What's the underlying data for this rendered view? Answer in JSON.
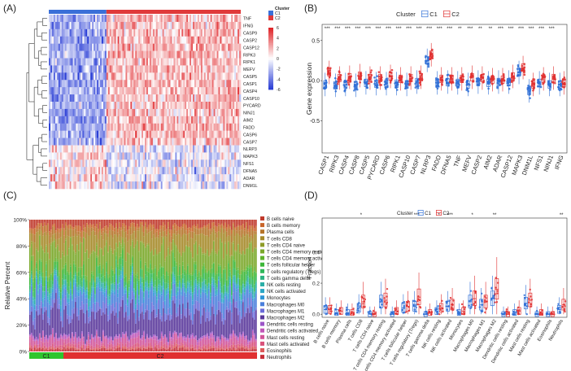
{
  "panels": {
    "A": {
      "label": "(A)"
    },
    "B": {
      "label": "(B)"
    },
    "C": {
      "label": "(C)"
    },
    "D": {
      "label": "(D)"
    }
  },
  "chart_data": [
    {
      "type": "heatmap",
      "panel": "A",
      "title": "",
      "annotation_title": "Cluster",
      "clusters": [
        "C1",
        "C2"
      ],
      "cluster_colors": {
        "C1": "#3a6fd8",
        "C2": "#e03a3a"
      },
      "rows": [
        "TNF",
        "IFNG",
        "CASP9",
        "CASP2",
        "CASP12",
        "RIPK3",
        "RIPK1",
        "MEFV",
        "CASP5",
        "CASP1",
        "CASP4",
        "CASP10",
        "PYCARD",
        "NINJ1",
        "AIM2",
        "FADD",
        "CASP6",
        "CASP7",
        "NLRP3",
        "MAPK3",
        "NFS1",
        "DFNA5",
        "ADAR",
        "DNM1L"
      ],
      "color_scale": {
        "ticks": [
          6,
          4,
          2,
          0,
          -2,
          -4,
          -6
        ],
        "low": "#2b3fd6",
        "mid": "#ffffff",
        "high": "#e0262a"
      },
      "c1_fraction": 0.3
    },
    {
      "type": "box",
      "panel": "B",
      "title": "",
      "legend_title": "Cluster",
      "legend": [
        "C1",
        "C2"
      ],
      "series_colors": {
        "C1": "#2f6fd6",
        "C2": "#e03030"
      },
      "ylabel": "Gene expression",
      "ylim": [
        -0.9,
        0.7
      ],
      "yticks": [
        0.5,
        0.0,
        -0.5
      ],
      "categories": [
        "CASP1",
        "RIPK3",
        "CASP4",
        "CASP8",
        "CASP5",
        "PYCARD",
        "CASP6",
        "RIPK1",
        "CASP10",
        "CASP7",
        "NLRP3",
        "FADD",
        "DFNA5",
        "TNF",
        "MEFV",
        "CASP2",
        "AIM2",
        "ADAR",
        "CASP12",
        "MAPK3",
        "DNM1L",
        "NFS1",
        "NINJ1",
        "IFNG"
      ],
      "significance": [
        "***",
        "***",
        "***",
        "***",
        "***",
        "***",
        "***",
        "***",
        "***",
        "***",
        "***",
        "***",
        "***",
        "**",
        "***",
        "**",
        "**",
        "***",
        "***",
        "***",
        "***",
        "***",
        "***",
        ""
      ],
      "c1_medians": [
        -0.05,
        -0.06,
        -0.05,
        -0.06,
        -0.03,
        -0.04,
        -0.04,
        -0.04,
        -0.05,
        -0.02,
        0.25,
        -0.03,
        -0.02,
        -0.03,
        -0.05,
        -0.02,
        -0.03,
        -0.02,
        -0.02,
        0.1,
        -0.13,
        -0.03,
        -0.05,
        -0.05
      ],
      "c2_medians": [
        0.1,
        0.03,
        0.04,
        0.06,
        0.03,
        0.03,
        0.05,
        0.02,
        0.03,
        0.04,
        0.32,
        0.02,
        0.02,
        0.02,
        0.04,
        0.03,
        0.01,
        0.01,
        0.05,
        0.16,
        -0.05,
        0.02,
        0.03,
        -0.03
      ]
    },
    {
      "type": "bar",
      "panel": "C",
      "stacked": true,
      "title": "",
      "ylabel": "Relative Percent",
      "yticks": [
        "100%",
        "80%",
        "60%",
        "40%",
        "20%",
        "0%"
      ],
      "group_labels": [
        "C1",
        "C2"
      ],
      "group_colors": {
        "C1": "#2ec52e",
        "C2": "#e03030"
      },
      "c1_fraction": 0.15,
      "legend": [
        {
          "name": "B cells naive",
          "color": "#c0392b"
        },
        {
          "name": "B cells memory",
          "color": "#c8652a"
        },
        {
          "name": "Plasma cells",
          "color": "#b5742a"
        },
        {
          "name": "T cells CD8",
          "color": "#a68a2a"
        },
        {
          "name": "T cells CD4 naive",
          "color": "#8f9c28"
        },
        {
          "name": "T cells CD4 memory resting",
          "color": "#7aa82a"
        },
        {
          "name": "T cells CD4 memory activated",
          "color": "#5fb32c"
        },
        {
          "name": "T cells follicular helper",
          "color": "#3cb738"
        },
        {
          "name": "T cells regulatory (Tregs)",
          "color": "#2fb75a"
        },
        {
          "name": "T cells gamma delta",
          "color": "#2cb382"
        },
        {
          "name": "NK cells resting",
          "color": "#2aaea6"
        },
        {
          "name": "NK cells activated",
          "color": "#2aa6c4"
        },
        {
          "name": "Monocytes",
          "color": "#2f96d6"
        },
        {
          "name": "Macrophages M0",
          "color": "#4a7fdc"
        },
        {
          "name": "Macrophages M1",
          "color": "#6a6bd8"
        },
        {
          "name": "Macrophages M2",
          "color": "#5b3a9c"
        },
        {
          "name": "Dendritic cells resting",
          "color": "#9c55c8"
        },
        {
          "name": "Dendritic cells activated",
          "color": "#c057b8"
        },
        {
          "name": "Mast cells resting",
          "color": "#d2559a"
        },
        {
          "name": "Mast cells activated",
          "color": "#d9527a"
        },
        {
          "name": "Eosinophils",
          "color": "#dd5a5a"
        },
        {
          "name": "Neutrophils",
          "color": "#c62f3a"
        }
      ]
    },
    {
      "type": "box",
      "panel": "D",
      "title": "",
      "legend_title": "Cluster",
      "legend": [
        "C1",
        "C2"
      ],
      "series_colors": {
        "C1": "#2f6fd6",
        "C2": "#e03030"
      },
      "ylabel": "Fraction",
      "ylim": [
        -0.02,
        0.62
      ],
      "yticks": [
        0.0,
        0.2,
        0.4
      ],
      "categories": [
        "B cells naive",
        "B cells memory",
        "Plasma cells",
        "T cells CD8",
        "T cells CD4 naive",
        "T cells CD4 memory resting",
        "T cells CD4 memory activated",
        "T cells follicular helper",
        "T cells regulatory (Tregs)",
        "T cells gamma delta",
        "NK cells resting",
        "NK cells activated",
        "Monocytes",
        "Macrophages M0",
        "Macrophages M1",
        "Macrophages M2",
        "Dendritic cells resting",
        "Dendritic cells activated",
        "Mast cells resting",
        "Mast cells activated",
        "Eosinophils",
        "Neutrophils"
      ],
      "significance": [
        "",
        "",
        "",
        "*",
        "",
        "",
        "",
        "",
        "***",
        "",
        "*",
        "***",
        "",
        "*",
        "",
        "**",
        "",
        "",
        "",
        "",
        "",
        "**"
      ],
      "c1_medians": [
        0.03,
        0.01,
        0.01,
        0.04,
        0.0,
        0.08,
        0.0,
        0.04,
        0.05,
        0.0,
        0.02,
        0.05,
        0.01,
        0.08,
        0.06,
        0.1,
        0.0,
        0.01,
        0.07,
        0.0,
        0.0,
        0.03
      ],
      "c2_medians": [
        0.03,
        0.02,
        0.01,
        0.08,
        0.0,
        0.09,
        0.02,
        0.05,
        0.11,
        0.01,
        0.04,
        0.06,
        0.02,
        0.1,
        0.08,
        0.16,
        0.0,
        0.02,
        0.09,
        0.01,
        0.0,
        0.06
      ]
    }
  ]
}
